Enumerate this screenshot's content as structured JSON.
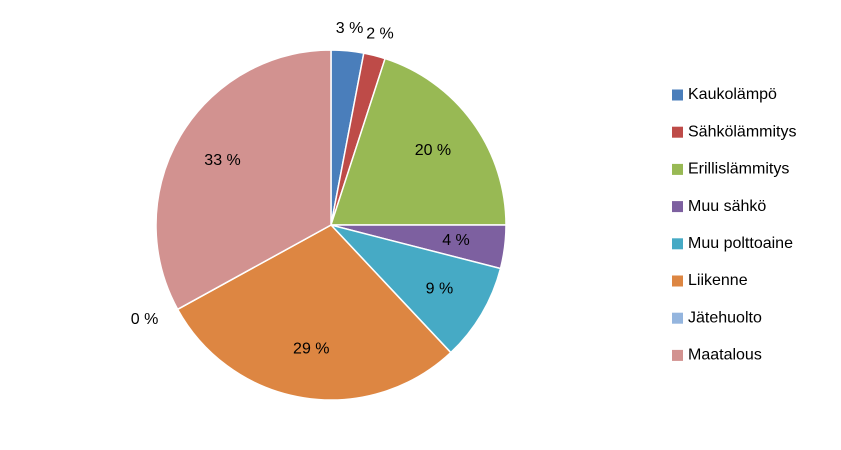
{
  "chart_data": {
    "type": "pie",
    "categories": [
      "Kaukolämpö",
      "Sähkölämmitys",
      "Erillislämmitys",
      "Muu sähkö",
      "Muu polttoaine",
      "Liikenne",
      "Jätehuolto",
      "Maatalous"
    ],
    "values": [
      3,
      2,
      20,
      4,
      9,
      29,
      0,
      33
    ],
    "value_labels": [
      "3 %",
      "2 %",
      "20 %",
      "4 %",
      "9 %",
      "29 %",
      "0 %",
      "33 %"
    ],
    "colors": [
      "#4a7ebb",
      "#be4b48",
      "#98b954",
      "#7d60a0",
      "#46aac5",
      "#dd8642",
      "#94b5de",
      "#d29290"
    ],
    "legend": "right"
  }
}
